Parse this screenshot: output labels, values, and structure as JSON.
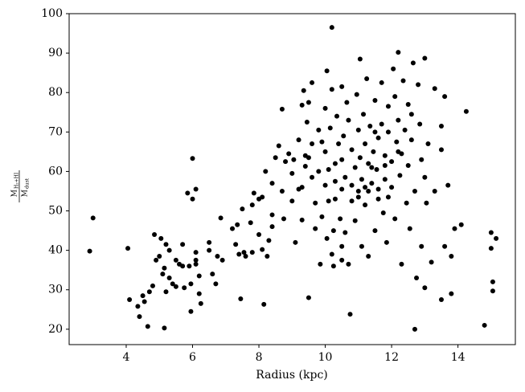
{
  "chart_data": {
    "type": "scatter",
    "xlabel": "Radius (kpc)",
    "ylabel": {
      "numerator": "M",
      "numerator_sub": "H₂+HI",
      "denominator": "M",
      "denominator_sub": "dust"
    },
    "color": "#000000",
    "xlim": [
      2.28,
      15.73
    ],
    "ylim": [
      16.1,
      100
    ],
    "xticks": [
      4,
      6,
      8,
      10,
      12,
      14
    ],
    "yticks": [
      20,
      30,
      40,
      50,
      60,
      70,
      80,
      90,
      100
    ],
    "grid": false,
    "x": [
      2.9,
      3.0,
      4.05,
      4.1,
      4.35,
      4.4,
      4.5,
      4.55,
      4.65,
      4.7,
      4.8,
      4.85,
      4.9,
      5.0,
      5.05,
      5.1,
      5.15,
      5.15,
      5.2,
      5.2,
      5.3,
      5.3,
      5.4,
      5.5,
      5.5,
      5.6,
      5.7,
      5.7,
      5.75,
      5.85,
      5.9,
      5.95,
      5.95,
      6.0,
      6.0,
      6.1,
      6.1,
      6.1,
      6.1,
      6.2,
      6.2,
      6.25,
      6.5,
      6.5,
      6.6,
      6.7,
      6.75,
      6.85,
      6.9,
      7.2,
      7.3,
      7.35,
      7.4,
      7.45,
      7.5,
      7.55,
      7.6,
      7.75,
      7.8,
      7.8,
      7.85,
      8.0,
      8.0,
      8.1,
      8.1,
      8.15,
      8.2,
      8.25,
      8.3,
      8.4,
      8.4,
      8.4,
      8.5,
      8.6,
      8.7,
      8.7,
      8.75,
      8.8,
      8.9,
      9.0,
      9.0,
      9.05,
      9.1,
      9.2,
      9.2,
      9.3,
      9.3,
      9.3,
      9.35,
      9.4,
      9.4,
      9.45,
      9.5,
      9.5,
      9.5,
      9.6,
      9.6,
      9.6,
      9.7,
      9.7,
      9.8,
      9.8,
      9.85,
      9.9,
      9.9,
      10.0,
      10.0,
      10.0,
      10.05,
      10.05,
      10.1,
      10.1,
      10.15,
      10.2,
      10.2,
      10.2,
      10.25,
      10.25,
      10.3,
      10.3,
      10.3,
      10.35,
      10.4,
      10.45,
      10.5,
      10.5,
      10.5,
      10.5,
      10.55,
      10.6,
      10.6,
      10.65,
      10.7,
      10.7,
      10.75,
      10.8,
      10.8,
      10.9,
      10.9,
      10.95,
      11.0,
      11.0,
      11.05,
      11.05,
      11.1,
      11.1,
      11.15,
      11.2,
      11.2,
      11.25,
      11.3,
      11.3,
      11.35,
      11.4,
      11.45,
      11.5,
      11.5,
      11.55,
      11.6,
      11.6,
      11.7,
      11.7,
      11.75,
      11.8,
      11.8,
      11.85,
      11.9,
      11.9,
      12.0,
      12.0,
      12.05,
      12.1,
      12.1,
      12.15,
      12.2,
      12.2,
      12.25,
      12.3,
      12.3,
      12.35,
      12.4,
      12.45,
      12.5,
      12.5,
      12.55,
      12.6,
      12.65,
      12.7,
      12.7,
      12.75,
      12.8,
      12.85,
      12.9,
      12.9,
      13.0,
      13.0,
      13.0,
      13.05,
      13.1,
      13.2,
      13.3,
      13.3,
      13.5,
      13.5,
      13.5,
      13.6,
      13.6,
      13.7,
      13.8,
      13.8,
      13.9,
      14.1,
      14.25,
      14.8,
      15.0,
      15.0,
      15.05,
      15.05,
      15.15,
      11.0,
      11.2,
      11.4,
      11.6,
      11.8,
      11.3,
      10.8,
      12.2,
      11.5,
      10.5,
      11.9,
      12.6
    ],
    "values": [
      39.8,
      48.2,
      40.5,
      27.5,
      25.8,
      23.2,
      28.5,
      27,
      20.7,
      29.5,
      31,
      44,
      37.5,
      38.5,
      43,
      34,
      35.5,
      20.3,
      41.5,
      29.5,
      40,
      33,
      31.5,
      37.5,
      30.8,
      36.5,
      41.5,
      36,
      30.5,
      54.5,
      36,
      24.5,
      31.5,
      63.3,
      53,
      55.5,
      39.5,
      37.5,
      36.5,
      33.5,
      29,
      26.5,
      42,
      40,
      34,
      31.5,
      38.5,
      48.2,
      37.5,
      45.5,
      41.5,
      46.5,
      39,
      27.7,
      50.5,
      39.5,
      38.5,
      47,
      51.5,
      39.5,
      54.5,
      44,
      53,
      53.5,
      40.2,
      26.3,
      60,
      38.5,
      42.5,
      57,
      49,
      46,
      63.5,
      66.5,
      75.8,
      55,
      48,
      62.5,
      64.5,
      52.5,
      59.5,
      63,
      42,
      68,
      55.5,
      56,
      47.7,
      76.8,
      80.5,
      61.3,
      64,
      72.5,
      77.5,
      63.5,
      28,
      82.5,
      67,
      58.5,
      45.5,
      52,
      70.5,
      60,
      36.5,
      48.5,
      67.5,
      76,
      65,
      56.5,
      85.5,
      43,
      60.5,
      52.5,
      71,
      96.5,
      80.8,
      39,
      45,
      36,
      62,
      57.5,
      53,
      74,
      67,
      48,
      81.5,
      63,
      41,
      37.5,
      69,
      58.5,
      44.5,
      77.5,
      73,
      36.5,
      23.8,
      65.5,
      52.5,
      61,
      47.5,
      79.5,
      70.5,
      55,
      88.5,
      63.5,
      58,
      41,
      74.5,
      67,
      51.5,
      83.5,
      62,
      38.5,
      71.5,
      57,
      65,
      78,
      45,
      60.5,
      53,
      68.5,
      82.5,
      72,
      49.5,
      64,
      58,
      42,
      76.5,
      70,
      62.5,
      56,
      86,
      79,
      48,
      67.5,
      90.2,
      73,
      59,
      64.5,
      36.5,
      83,
      70.5,
      52,
      77,
      61.5,
      45.5,
      68,
      87.5,
      55,
      20,
      33,
      82,
      72,
      63,
      41,
      88.7,
      58.5,
      30.5,
      52,
      67,
      37,
      81,
      55,
      71.5,
      65.5,
      27.5,
      79,
      41,
      56.5,
      38.5,
      29,
      45.5,
      46.5,
      75.2,
      21,
      44.5,
      40.5,
      32,
      29.7,
      43,
      53.5,
      56,
      61,
      55.5,
      61.5,
      55,
      56.5,
      65,
      70,
      55.5,
      53.5,
      74.5
    ]
  }
}
